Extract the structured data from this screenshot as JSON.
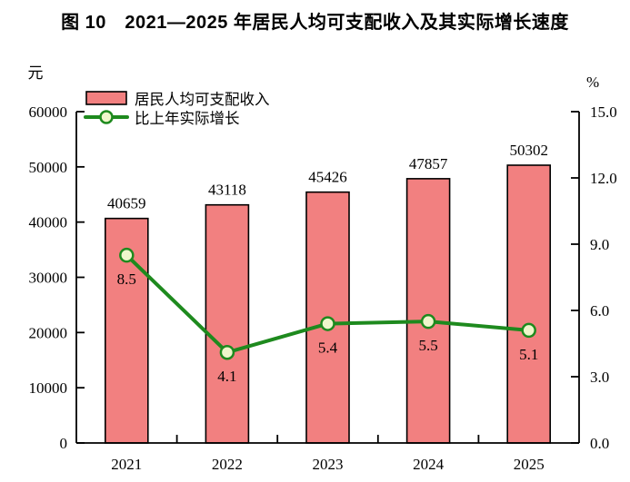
{
  "chart_data": {
    "type": "bar",
    "subtype": "combo-bar-line-dual-axis",
    "title": "图 10　2021—2025 年居民人均可支配收入及其实际增长速度",
    "categories": [
      "2021",
      "2022",
      "2023",
      "2024",
      "2025"
    ],
    "series": [
      {
        "name": "居民人均可支配收入",
        "type": "bar",
        "axis": "left",
        "values": [
          40659,
          43118,
          45426,
          47857,
          50302
        ]
      },
      {
        "name": "比上年实际增长",
        "type": "line",
        "axis": "right",
        "values": [
          8.5,
          4.1,
          5.4,
          5.5,
          5.1
        ]
      }
    ],
    "left_axis": {
      "unit": "元",
      "min": 0,
      "max": 60000,
      "step": 10000,
      "tick_labels": [
        "60000",
        "50000",
        "40000",
        "30000",
        "20000",
        "10000",
        "0"
      ]
    },
    "right_axis": {
      "unit": "%",
      "min": 0,
      "max": 15,
      "step": 3,
      "tick_labels": [
        "15.0",
        "12.0",
        "9.0",
        "6.0",
        "3.0",
        "0.0"
      ]
    },
    "legend": {
      "position": "top-left",
      "items": [
        "居民人均可支配收入",
        "比上年实际增长"
      ]
    },
    "grid": false,
    "colors": {
      "bar_fill": "#F28080",
      "bar_border": "#000000",
      "line": "#1E8A1E",
      "marker_fill": "#EFF6CB",
      "marker_border": "#1E8A1E",
      "text": "#000000"
    }
  }
}
